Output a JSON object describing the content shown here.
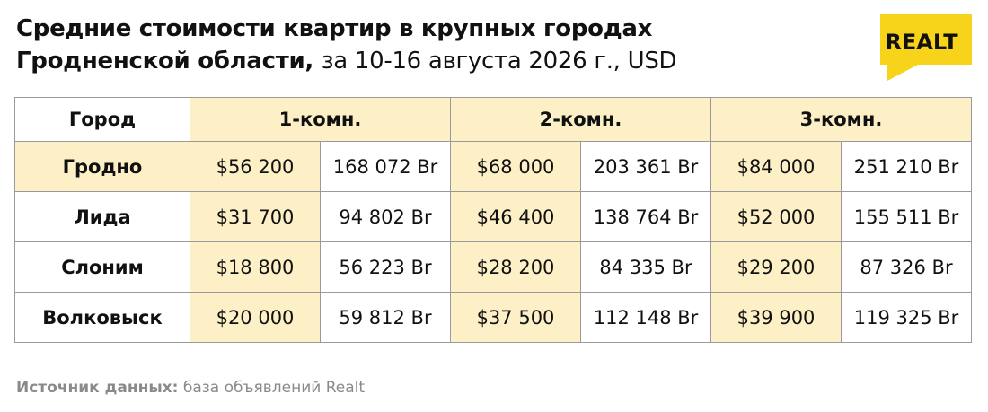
{
  "header": {
    "title_line1": "Средние стоимости квартир в крупных городах",
    "title_bold": "Гродненской области,",
    "title_rest": "за 10-16 августа 2026 г., USD",
    "logo": "REALT"
  },
  "table": {
    "columns": [
      "Город",
      "1-комн.",
      "2-комн.",
      "3-комн."
    ],
    "rows": [
      [
        "Гродно",
        "$56 200",
        "168 072 Br",
        "$68 000",
        "203 361 Br",
        "$84 000",
        "251 210 Br"
      ],
      [
        "Лида",
        "$31 700",
        "94 802 Br",
        "$46 400",
        "138 764 Br",
        "$52 000",
        "155 511 Br"
      ],
      [
        "Слоним",
        "$18 800",
        "56 223 Br",
        "$28 200",
        "84 335 Br",
        "$29 200",
        "87 326 Br"
      ],
      [
        "Волковыск",
        "$20 000",
        "59 812 Br",
        "$37 500",
        "112 148 Br",
        "$39 900",
        "119 325 Br"
      ]
    ]
  },
  "footer": {
    "label": "Источник данных:",
    "text": "база объявлений Realt"
  }
}
